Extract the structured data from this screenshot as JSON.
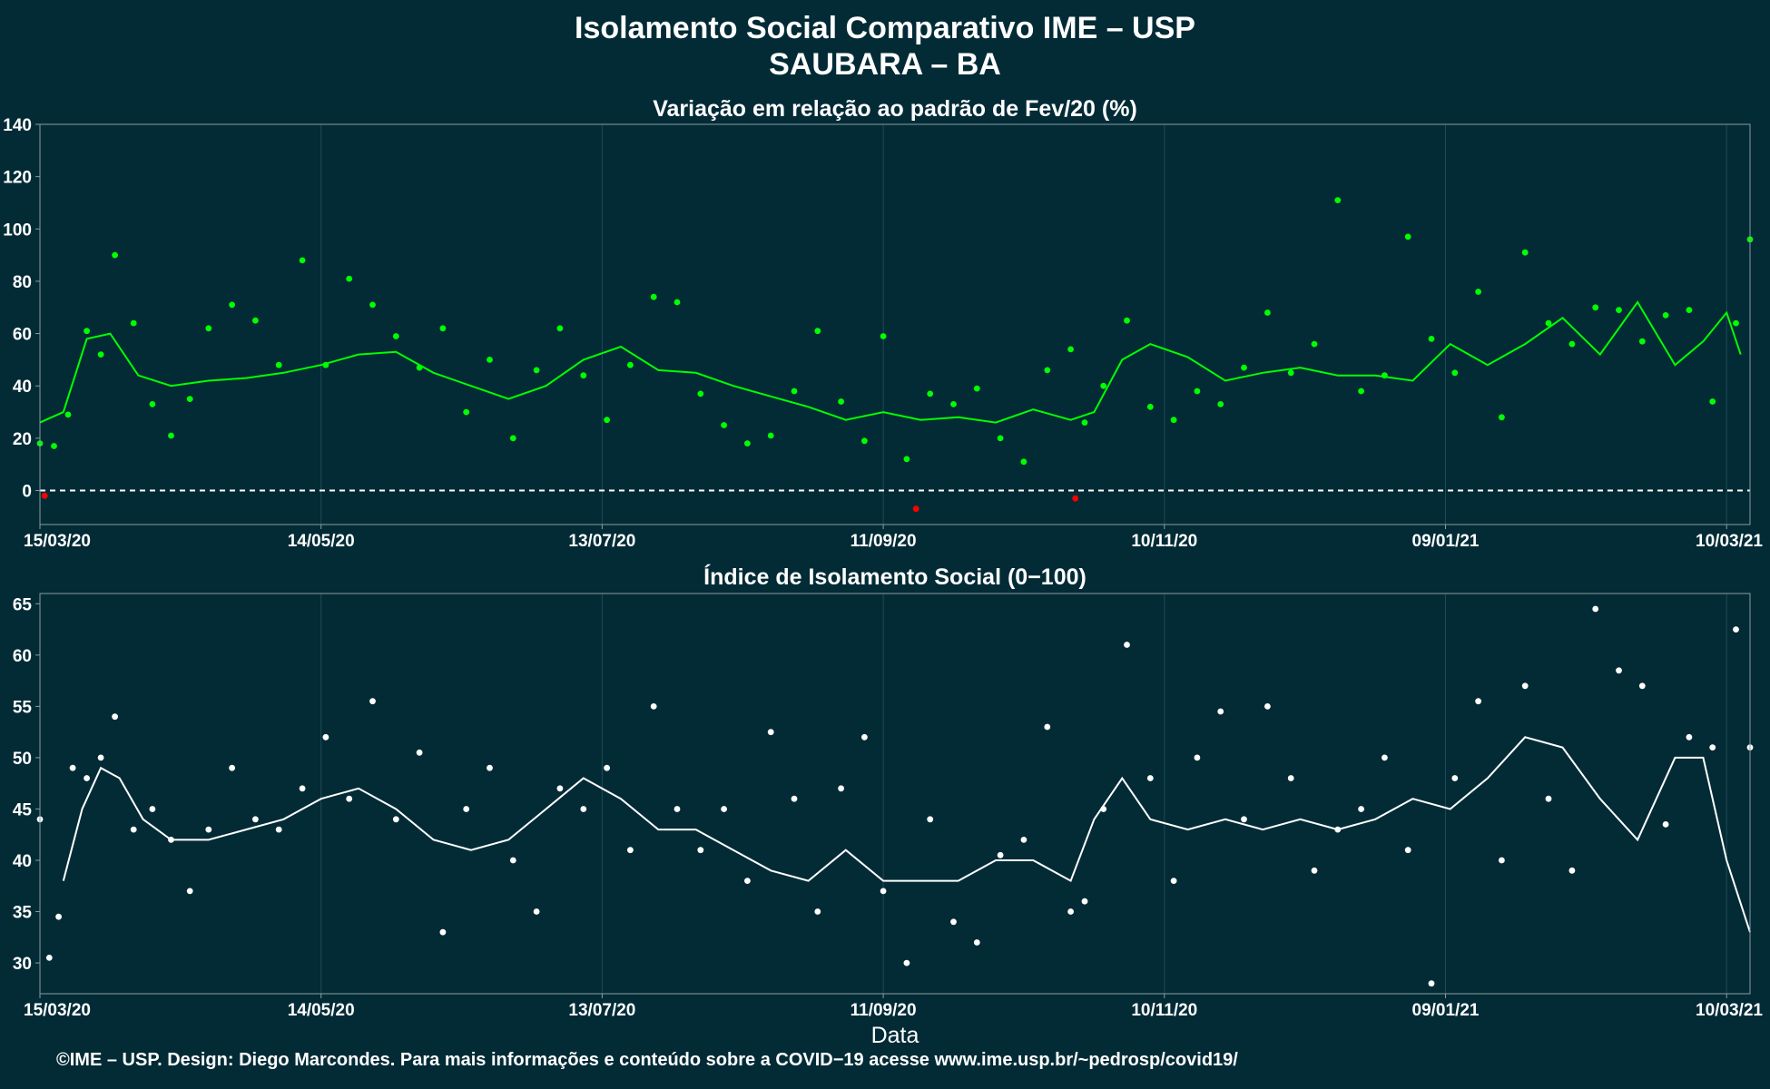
{
  "title_line1": "Isolamento Social Comparativo IME – USP",
  "title_line2": "SAUBARA – BA",
  "footer": "©IME – USP. Design: Diego Marcondes. Para mais informações e conteúdo sobre a COVID−19 acesse www.ime.usp.br/~pedrosp/covid19/",
  "colors": {
    "background": "#022b36",
    "variation": "#00ff00",
    "negative": "#ff0000",
    "index": "#ffffff",
    "grid": "#1f4a56",
    "frame": "#8a9ca2"
  },
  "chart_data": [
    {
      "type": "scatter",
      "title": "Variação em relação ao padrão de Fev/20 (%)",
      "xlabel": "",
      "ylabel": "",
      "x_range": [
        "2020-03-15",
        "2021-03-15"
      ],
      "x_ticks": [
        "15/03/20",
        "14/05/20",
        "13/07/20",
        "11/09/20",
        "10/11/20",
        "09/01/21",
        "10/03/21"
      ],
      "ylim": [
        -13,
        140
      ],
      "y_ticks": [
        0,
        20,
        40,
        60,
        80,
        100,
        120,
        140
      ],
      "reference_line": 0,
      "grid": true,
      "series": [
        {
          "marker": "points",
          "x": [
            "2020-03-15",
            "2020-03-18",
            "2020-03-21",
            "2020-03-25",
            "2020-03-28",
            "2020-03-31",
            "2020-04-04",
            "2020-04-08",
            "2020-04-12",
            "2020-04-16",
            "2020-04-20",
            "2020-04-25",
            "2020-04-30",
            "2020-05-05",
            "2020-05-10",
            "2020-05-15",
            "2020-05-20",
            "2020-05-25",
            "2020-05-30",
            "2020-06-04",
            "2020-06-09",
            "2020-06-14",
            "2020-06-19",
            "2020-06-24",
            "2020-06-29",
            "2020-07-04",
            "2020-07-09",
            "2020-07-14",
            "2020-07-19",
            "2020-07-24",
            "2020-07-29",
            "2020-08-03",
            "2020-08-08",
            "2020-08-13",
            "2020-08-18",
            "2020-08-23",
            "2020-08-28",
            "2020-09-02",
            "2020-09-07",
            "2020-09-11",
            "2020-09-16",
            "2020-09-21",
            "2020-09-26",
            "2020-10-01",
            "2020-10-06",
            "2020-10-11",
            "2020-10-16",
            "2020-10-21",
            "2020-10-24",
            "2020-10-28",
            "2020-11-02",
            "2020-11-07",
            "2020-11-12",
            "2020-11-17",
            "2020-11-22",
            "2020-11-27",
            "2020-12-02",
            "2020-12-07",
            "2020-12-12",
            "2020-12-17",
            "2020-12-22",
            "2020-12-27",
            "2021-01-01",
            "2021-01-06",
            "2021-01-11",
            "2021-01-16",
            "2021-01-21",
            "2021-01-26",
            "2021-01-31",
            "2021-02-05",
            "2021-02-10",
            "2021-02-15",
            "2021-02-20",
            "2021-02-25",
            "2021-03-02",
            "2021-03-07",
            "2021-03-12",
            "2021-03-15"
          ],
          "y": [
            18,
            17,
            29,
            61,
            52,
            90,
            64,
            33,
            21,
            35,
            62,
            71,
            65,
            48,
            88,
            48,
            81,
            71,
            59,
            47,
            62,
            30,
            50,
            20,
            46,
            62,
            44,
            27,
            48,
            74,
            72,
            37,
            25,
            18,
            21,
            38,
            61,
            34,
            19,
            59,
            12,
            37,
            33,
            39,
            20,
            11,
            46,
            54,
            26,
            40,
            65,
            32,
            27,
            38,
            33,
            47,
            68,
            45,
            56,
            111,
            38,
            44,
            97,
            58,
            45,
            76,
            28,
            91,
            64,
            56,
            70,
            69,
            57,
            67,
            69,
            34,
            64,
            96
          ],
          "color": "#00ff00"
        },
        {
          "marker": "points",
          "x": [
            "2020-03-16",
            "2020-09-18",
            "2020-10-22"
          ],
          "y": [
            -2,
            -7,
            -3
          ],
          "color": "#ff0000"
        },
        {
          "marker": "line",
          "x": [
            "2020-03-15",
            "2020-03-20",
            "2020-03-25",
            "2020-03-30",
            "2020-04-05",
            "2020-04-12",
            "2020-04-20",
            "2020-04-28",
            "2020-05-06",
            "2020-05-14",
            "2020-05-22",
            "2020-05-30",
            "2020-06-07",
            "2020-06-15",
            "2020-06-23",
            "2020-07-01",
            "2020-07-09",
            "2020-07-17",
            "2020-07-25",
            "2020-08-02",
            "2020-08-10",
            "2020-08-18",
            "2020-08-26",
            "2020-09-03",
            "2020-09-11",
            "2020-09-19",
            "2020-09-27",
            "2020-10-05",
            "2020-10-13",
            "2020-10-21",
            "2020-10-26",
            "2020-11-01",
            "2020-11-07",
            "2020-11-15",
            "2020-11-23",
            "2020-12-01",
            "2020-12-09",
            "2020-12-17",
            "2020-12-25",
            "2021-01-02",
            "2021-01-10",
            "2021-01-18",
            "2021-01-26",
            "2021-02-03",
            "2021-02-11",
            "2021-02-19",
            "2021-02-27",
            "2021-03-05",
            "2021-03-10",
            "2021-03-13"
          ],
          "y": [
            26,
            30,
            58,
            60,
            44,
            40,
            42,
            43,
            45,
            48,
            52,
            53,
            45,
            40,
            35,
            40,
            50,
            55,
            46,
            45,
            40,
            36,
            32,
            27,
            30,
            27,
            28,
            26,
            31,
            27,
            30,
            50,
            56,
            51,
            42,
            45,
            47,
            44,
            44,
            42,
            56,
            48,
            56,
            66,
            52,
            72,
            48,
            57,
            68,
            52
          ],
          "color": "#00ff00"
        }
      ]
    },
    {
      "type": "scatter",
      "title": "Índice de Isolamento Social (0−100)",
      "xlabel": "Data",
      "ylabel": "",
      "x_range": [
        "2020-03-15",
        "2021-03-15"
      ],
      "x_ticks": [
        "15/03/20",
        "14/05/20",
        "13/07/20",
        "11/09/20",
        "10/11/20",
        "09/01/21",
        "10/03/21"
      ],
      "ylim": [
        27,
        66
      ],
      "y_ticks": [
        30,
        35,
        40,
        45,
        50,
        55,
        60,
        65
      ],
      "grid": true,
      "series": [
        {
          "marker": "points",
          "x": [
            "2020-03-15",
            "2020-03-17",
            "2020-03-19",
            "2020-03-22",
            "2020-03-25",
            "2020-03-28",
            "2020-03-31",
            "2020-04-04",
            "2020-04-08",
            "2020-04-12",
            "2020-04-16",
            "2020-04-20",
            "2020-04-25",
            "2020-04-30",
            "2020-05-05",
            "2020-05-10",
            "2020-05-15",
            "2020-05-20",
            "2020-05-25",
            "2020-05-30",
            "2020-06-04",
            "2020-06-09",
            "2020-06-14",
            "2020-06-19",
            "2020-06-24",
            "2020-06-29",
            "2020-07-04",
            "2020-07-09",
            "2020-07-14",
            "2020-07-19",
            "2020-07-24",
            "2020-07-29",
            "2020-08-03",
            "2020-08-08",
            "2020-08-13",
            "2020-08-18",
            "2020-08-23",
            "2020-08-28",
            "2020-09-02",
            "2020-09-07",
            "2020-09-11",
            "2020-09-16",
            "2020-09-21",
            "2020-09-26",
            "2020-10-01",
            "2020-10-06",
            "2020-10-11",
            "2020-10-16",
            "2020-10-21",
            "2020-10-24",
            "2020-10-28",
            "2020-11-02",
            "2020-11-07",
            "2020-11-12",
            "2020-11-17",
            "2020-11-22",
            "2020-11-27",
            "2020-12-02",
            "2020-12-07",
            "2020-12-12",
            "2020-12-17",
            "2020-12-22",
            "2020-12-27",
            "2021-01-01",
            "2021-01-06",
            "2021-01-11",
            "2021-01-16",
            "2021-01-21",
            "2021-01-26",
            "2021-01-31",
            "2021-02-05",
            "2021-02-10",
            "2021-02-15",
            "2021-02-20",
            "2021-02-25",
            "2021-03-02",
            "2021-03-07",
            "2021-03-12",
            "2021-03-15"
          ],
          "y": [
            44,
            30.5,
            34.5,
            49,
            48,
            50,
            54,
            43,
            45,
            42,
            37,
            43,
            49,
            44,
            43,
            47,
            52,
            46,
            55.5,
            44,
            50.5,
            33,
            45,
            49,
            40,
            35,
            47,
            45,
            49,
            41,
            55,
            45,
            41,
            45,
            38,
            52.5,
            46,
            35,
            47,
            52,
            37,
            30,
            44,
            34,
            32,
            40.5,
            42,
            53,
            35,
            36,
            45,
            61,
            48,
            38,
            50,
            54.5,
            44,
            55,
            48,
            39,
            43,
            45,
            50,
            41,
            28,
            48,
            55.5,
            40,
            57,
            46,
            39,
            64.5,
            58.5,
            57,
            43.5,
            52,
            51,
            62.5,
            51
          ],
          "color": "#ffffff"
        },
        {
          "marker": "line",
          "x": [
            "2020-03-20",
            "2020-03-24",
            "2020-03-28",
            "2020-04-01",
            "2020-04-06",
            "2020-04-12",
            "2020-04-20",
            "2020-04-28",
            "2020-05-06",
            "2020-05-14",
            "2020-05-22",
            "2020-05-30",
            "2020-06-07",
            "2020-06-15",
            "2020-06-23",
            "2020-07-01",
            "2020-07-09",
            "2020-07-17",
            "2020-07-25",
            "2020-08-02",
            "2020-08-10",
            "2020-08-18",
            "2020-08-26",
            "2020-09-03",
            "2020-09-11",
            "2020-09-19",
            "2020-09-27",
            "2020-10-05",
            "2020-10-13",
            "2020-10-21",
            "2020-10-26",
            "2020-11-01",
            "2020-11-07",
            "2020-11-15",
            "2020-11-23",
            "2020-12-01",
            "2020-12-09",
            "2020-12-17",
            "2020-12-25",
            "2021-01-02",
            "2021-01-10",
            "2021-01-18",
            "2021-01-26",
            "2021-02-03",
            "2021-02-11",
            "2021-02-19",
            "2021-02-27",
            "2021-03-05",
            "2021-03-10",
            "2021-03-15"
          ],
          "y": [
            38,
            45,
            49,
            48,
            44,
            42,
            42,
            43,
            44,
            46,
            47,
            45,
            42,
            41,
            42,
            45,
            48,
            46,
            43,
            43,
            41,
            39,
            38,
            41,
            38,
            38,
            38,
            40,
            40,
            38,
            44,
            48,
            44,
            43,
            44,
            43,
            44,
            43,
            44,
            46,
            45,
            48,
            52,
            51,
            46,
            42,
            50,
            50,
            40,
            33
          ],
          "color": "#ffffff"
        }
      ]
    }
  ]
}
